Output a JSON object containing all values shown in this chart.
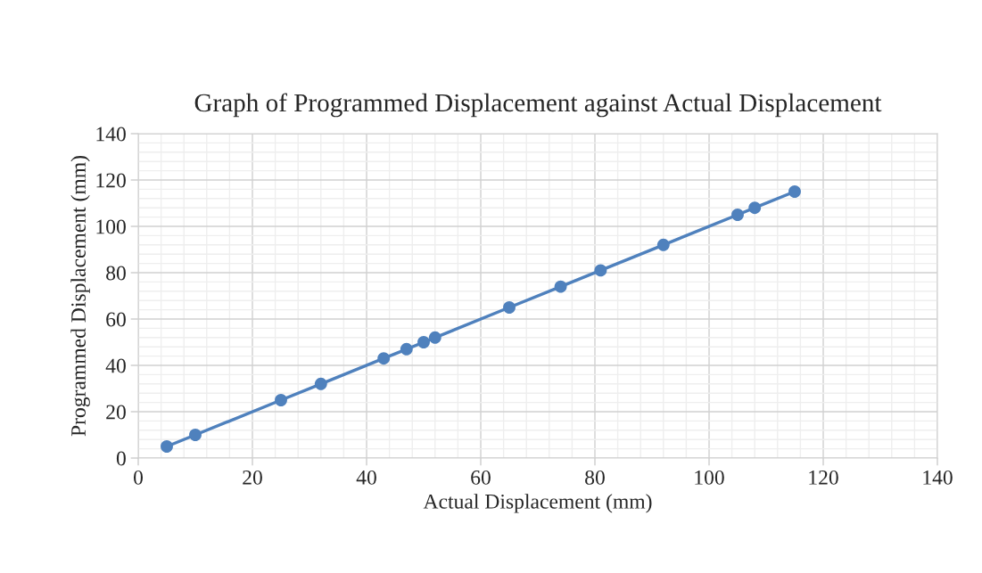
{
  "chart_data": {
    "type": "line",
    "title": "Graph of Programmed Displacement against Actual Displacement",
    "xlabel": "Actual Displacement (mm)",
    "ylabel": "Programmed Displacement (mm)",
    "x": [
      5,
      10,
      25,
      32,
      43,
      47,
      50,
      52,
      65,
      74,
      81,
      92,
      105,
      108,
      115
    ],
    "series": [
      {
        "color": "#4f81bd",
        "values": [
          5,
          10,
          25,
          32,
          43,
          47,
          50,
          52,
          65,
          74,
          81,
          92,
          105,
          108,
          115
        ]
      }
    ],
    "xlim": [
      0,
      140
    ],
    "xticks": [
      0,
      20,
      40,
      60,
      80,
      100,
      120,
      140
    ],
    "ylim": [
      0,
      140
    ],
    "yticks": [
      0,
      20,
      40,
      60,
      80,
      100,
      120,
      140
    ],
    "grid": true,
    "marker": "circle",
    "line_style": "solid",
    "legend": false
  }
}
